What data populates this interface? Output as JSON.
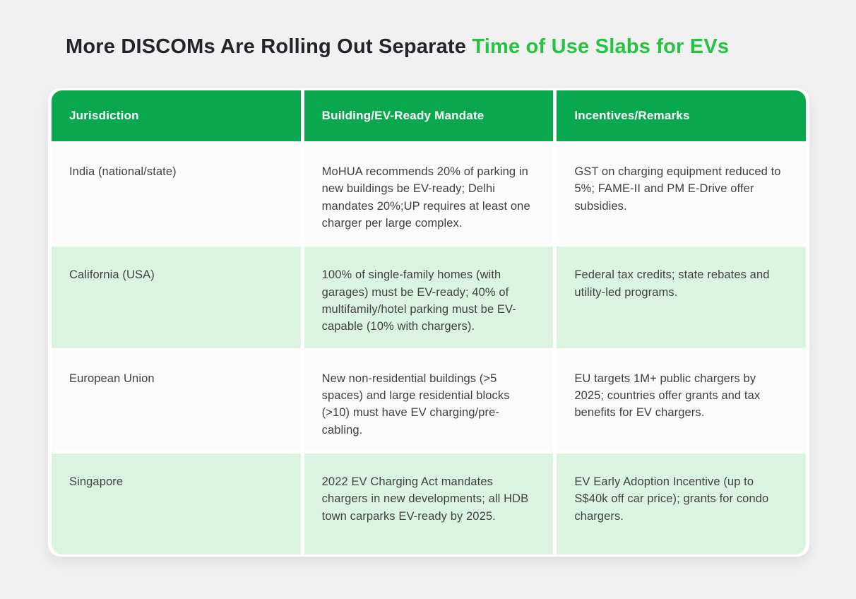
{
  "title": {
    "prefix": "More DISCOMs Are Rolling Out Separate ",
    "highlight": "Time of Use Slabs for EVs"
  },
  "colors": {
    "page_background": "#F1F1F2",
    "title_dark": "#212429",
    "title_highlight_green": "#23C43F",
    "header_green": "#09A84F",
    "row_light_green": "#DBF4E2",
    "row_white": "#FBFBFB",
    "header_text": "#FFFFFF",
    "body_text": "#414141"
  },
  "table": {
    "columns": [
      "Jurisdiction",
      "Building/EV-Ready Mandate",
      "Incentives/Remarks"
    ],
    "rows": [
      {
        "jurisdiction": "India (national/state)",
        "mandate": "MoHUA recommends 20% of parking in new buildings be EV-ready; Delhi mandates 20%;UP requires at least one charger per large complex.",
        "incentives": "GST on charging equipment reduced to 5%; FAME-II and PM E-Drive offer subsidies."
      },
      {
        "jurisdiction": "California (USA)",
        "mandate": "100% of single-family homes (with garages) must be EV-ready; 40% of multifamily/hotel parking must be EV-capable (10% with chargers).",
        "incentives": "Federal tax credits; state rebates and utility-led programs."
      },
      {
        "jurisdiction": "European Union",
        "mandate": "New non-residential buildings (>5 spaces) and large residential blocks (>10) must have EV charging/pre-cabling.",
        "incentives": "EU targets 1M+ public chargers by 2025; countries offer  grants and tax benefits for EV chargers."
      },
      {
        "jurisdiction": "Singapore",
        "mandate": "2022 EV Charging Act mandates chargers in new developments; all HDB town carparks EV-ready by 2025.",
        "incentives": "EV Early Adoption Incentive (up to S$40k off car price); grants for condo chargers."
      }
    ]
  }
}
